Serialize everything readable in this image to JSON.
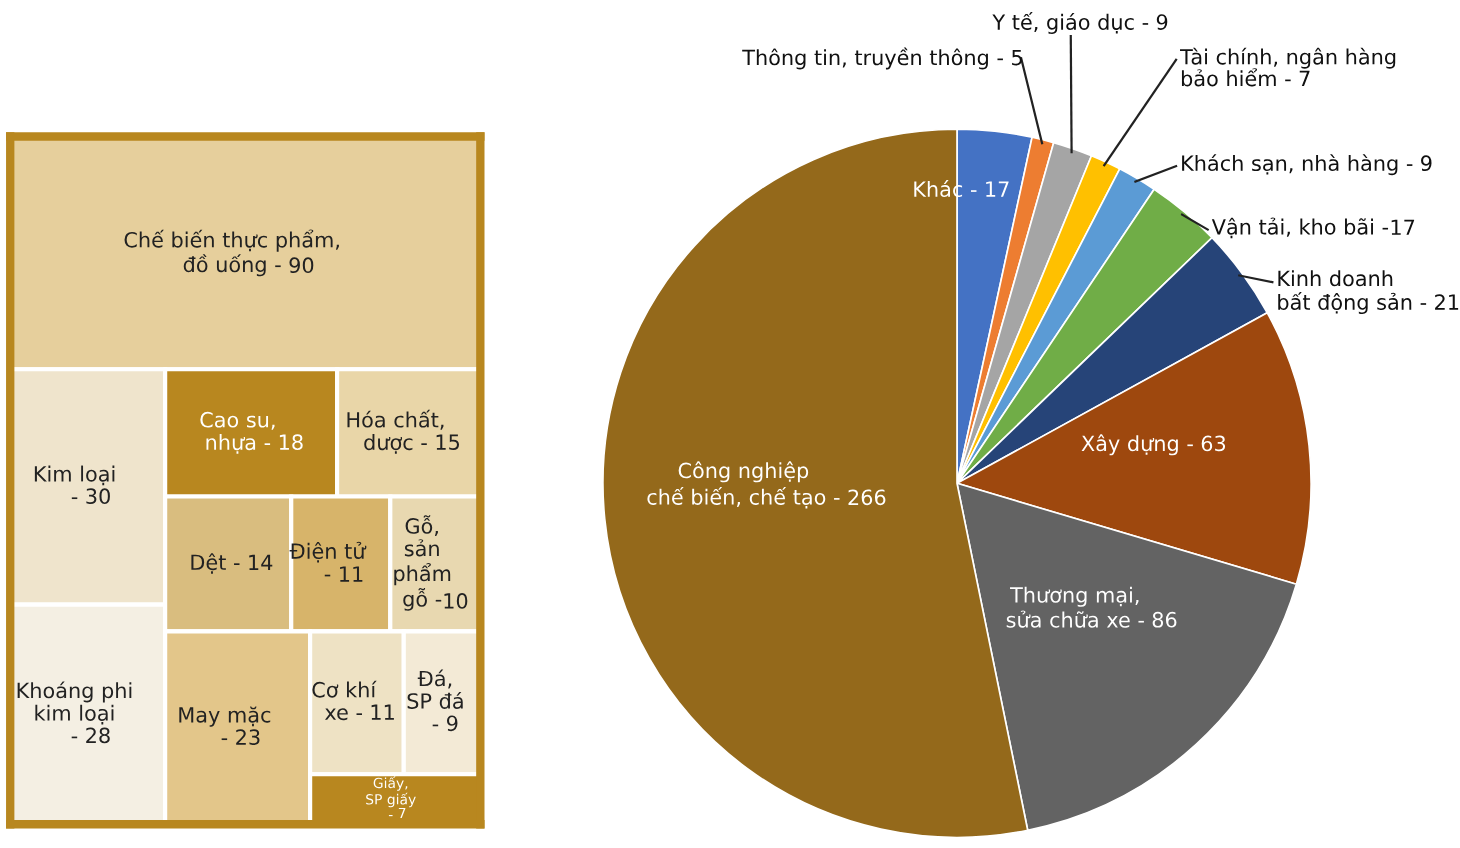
{
  "chart_data": [
    {
      "type": "other",
      "categories": [
        "Chế biến thực phẩm,\nđồ uống -",
        "Kim loại\n-",
        "Khoáng phi\nkim loại\n-",
        "Cao su,\nnhựa -",
        "Hóa chất,\ndược -",
        "Dệt -",
        "Điện tử\n-",
        "Gỗ,\nsản\nphẩm\ngỗ -",
        "May mặc\n-",
        "Cơ khí\nxe -",
        "Đá,\nSP đá\n-",
        "Giấy,\nSP giấy\n-"
      ],
      "values": [
        90,
        30,
        28,
        18,
        15,
        14,
        11,
        10,
        23,
        11,
        9,
        7
      ],
      "value_labels": [
        " 90",
        " 30",
        " 28",
        " 18",
        " 15",
        " 14",
        " 11",
        "10",
        " 23",
        " 11",
        " 9",
        " 7"
      ],
      "colors": [
        "#e6cf9c",
        "#efe4cc",
        "#f4efe3",
        "#b8871f",
        "#e9d6a8",
        "#d9bd7f",
        "#d7b46a",
        "#e8d8b0",
        "#e3c68a",
        "#eee2c4",
        "#f3ead6",
        "#b8871f"
      ]
    },
    {
      "type": "pie",
      "categories": [
        "Khác -",
        "Thông tin, truyền thông -",
        "Y tế, giáo dục -",
        "Tài chính, ngân hàng\nbảo hiểm -",
        "Khách sạn, nhà hàng -",
        "Vận tải, kho bãi -",
        "Kinh doanh\nbất động sản -",
        "Xây dựng -",
        "Thương mại,\nsửa chữa xe -",
        "Công nghiệp\nchế biến, chế tạo -"
      ],
      "values": [
        17,
        5,
        9,
        7,
        9,
        17,
        21,
        63,
        86,
        266
      ],
      "value_labels": [
        " 17",
        " 5",
        " 9",
        " 7",
        " 9",
        "17",
        " 21",
        " 63",
        " 86",
        " 266"
      ],
      "colors": [
        "#4472c4",
        "#ed7d31",
        "#a5a5a5",
        "#ffc000",
        "#5b9bd5",
        "#70ad47",
        "#264478",
        "#9e480e",
        "#636363",
        "#94691b"
      ]
    }
  ]
}
